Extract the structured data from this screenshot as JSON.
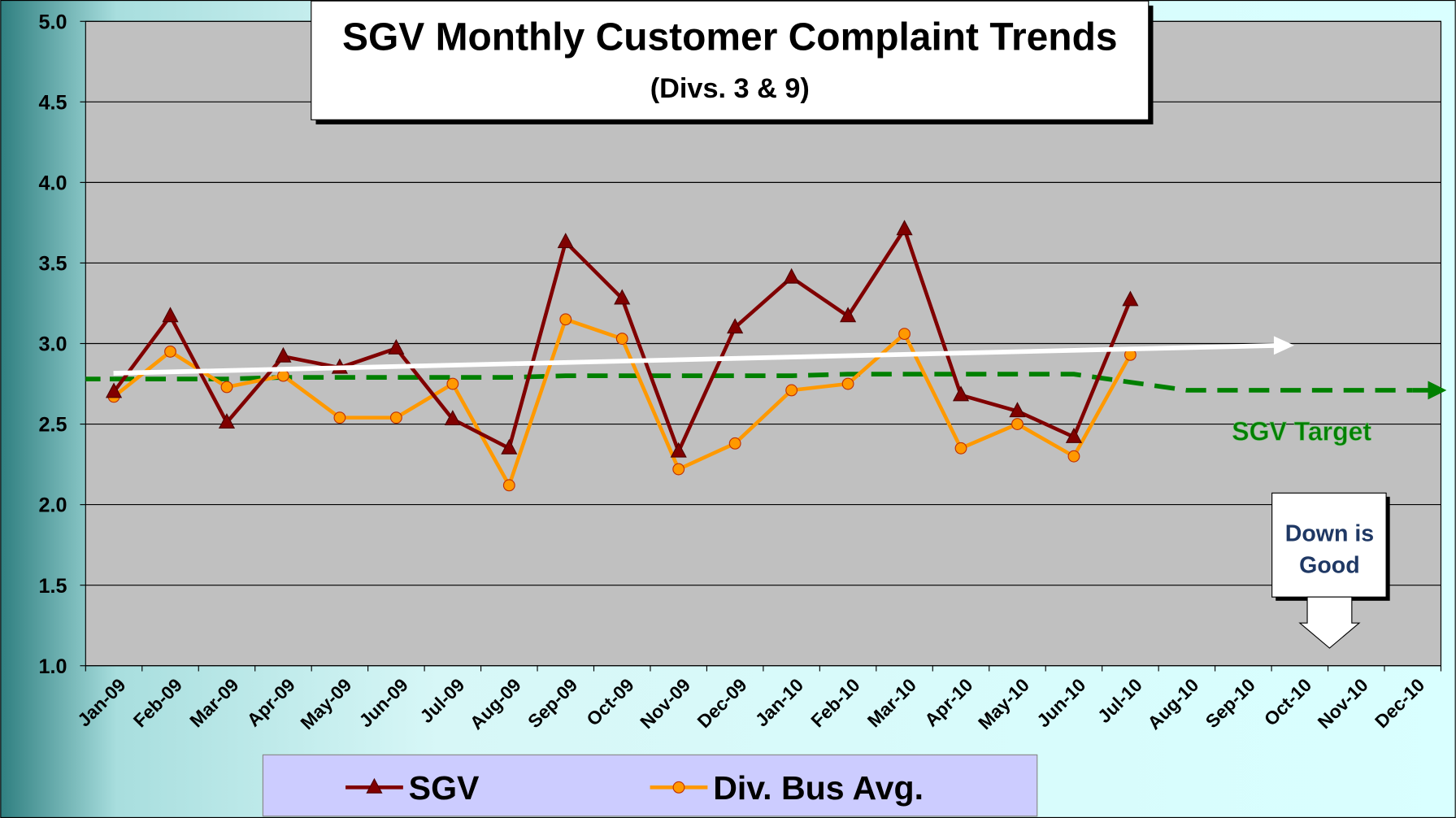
{
  "chart_data": {
    "type": "line",
    "title": "SGV Monthly Customer Complaint Trends",
    "subtitle": "(Divs. 3 & 9)",
    "categories": [
      "Jan-09",
      "Feb-09",
      "Mar-09",
      "Apr-09",
      "May-09",
      "Jun-09",
      "Jul-09",
      "Aug-09",
      "Sep-09",
      "Oct-09",
      "Nov-09",
      "Dec-09",
      "Jan-10",
      "Feb-10",
      "Mar-10",
      "Apr-10",
      "May-10",
      "Jun-10",
      "Jul-10",
      "Aug-10",
      "Sep-10",
      "Oct-10",
      "Nov-10",
      "Dec-10"
    ],
    "series": [
      {
        "name": "SGV",
        "color": "#800000",
        "marker": "triangle",
        "values": [
          2.7,
          3.17,
          2.51,
          2.92,
          2.85,
          2.97,
          2.53,
          2.35,
          3.63,
          3.28,
          2.33,
          3.1,
          3.41,
          3.17,
          3.71,
          2.68,
          2.58,
          2.42,
          3.27,
          null,
          null,
          null,
          null,
          null
        ]
      },
      {
        "name": "Div. Bus Avg.",
        "color": "#ff9900",
        "marker": "circle",
        "values": [
          2.67,
          2.95,
          2.73,
          2.8,
          2.54,
          2.54,
          2.75,
          2.12,
          3.15,
          3.03,
          2.22,
          2.38,
          2.71,
          2.75,
          3.06,
          2.35,
          2.5,
          2.3,
          2.93,
          null,
          null,
          null,
          null,
          null
        ]
      }
    ],
    "target": {
      "label": "SGV Target",
      "color": "#008000",
      "values": [
        2.78,
        2.78,
        2.78,
        2.79,
        2.79,
        2.79,
        2.79,
        2.79,
        2.8,
        2.8,
        2.8,
        2.8,
        2.8,
        2.81,
        2.81,
        2.81,
        2.81,
        2.81,
        2.76,
        2.71,
        2.71,
        2.71,
        2.71,
        2.71
      ]
    },
    "annotation_lines": [
      "Down is",
      "Good"
    ],
    "ylim": [
      1,
      5
    ],
    "yticks": [
      {
        "value": 1,
        "label": "1.0"
      },
      1.5,
      {
        "value": 2,
        "label": "2.0"
      },
      2.5,
      {
        "value": 3,
        "label": "3.0"
      },
      3.5,
      {
        "value": 4,
        "label": "4.0"
      },
      4.5,
      {
        "value": 5,
        "label": "5.0"
      }
    ],
    "grid": true
  }
}
